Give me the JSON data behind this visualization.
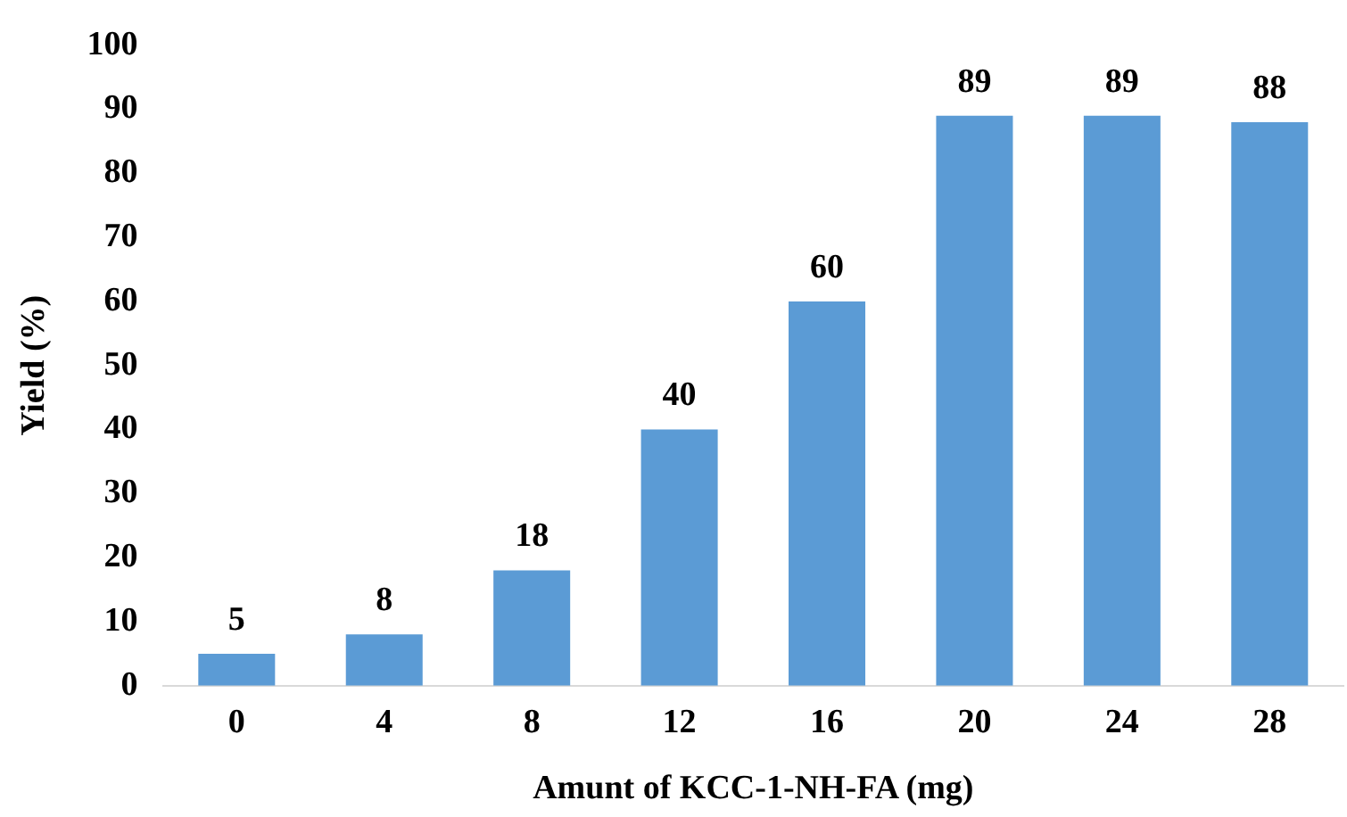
{
  "chart_data": {
    "type": "bar",
    "xlabel": "Amunt of KCC-1-NH-FA (mg)",
    "ylabel": "Yield (%)",
    "categories": [
      "0",
      "4",
      "8",
      "12",
      "16",
      "20",
      "24",
      "28"
    ],
    "values": [
      5,
      8,
      18,
      40,
      60,
      89,
      89,
      88
    ],
    "color": "#5b9bd5",
    "ylim": [
      0,
      100
    ],
    "yticks": [
      0,
      10,
      20,
      30,
      40,
      50,
      60,
      70,
      80,
      90,
      100
    ],
    "grid": false,
    "legend": false,
    "data_labels": true
  }
}
